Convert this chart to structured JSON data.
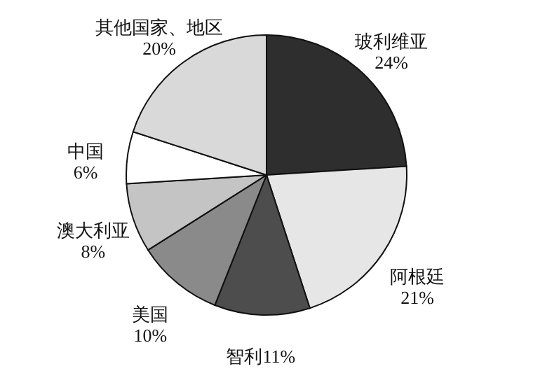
{
  "chart_data": {
    "type": "pie",
    "categories": [
      "玻利维亚",
      "阿根廷",
      "智利",
      "美国",
      "澳大利亚",
      "中国",
      "其他国家、地区"
    ],
    "values": [
      24,
      21,
      11,
      10,
      8,
      6,
      20
    ],
    "value_labels": [
      "24%",
      "21%",
      "11%",
      "10%",
      "8%",
      "6%",
      "20%"
    ],
    "colors": [
      "#2e2e2e",
      "#e6e6e6",
      "#4d4d4d",
      "#8a8a8a",
      "#c4c4c4",
      "#ffffff",
      "#d9d9d9"
    ]
  }
}
